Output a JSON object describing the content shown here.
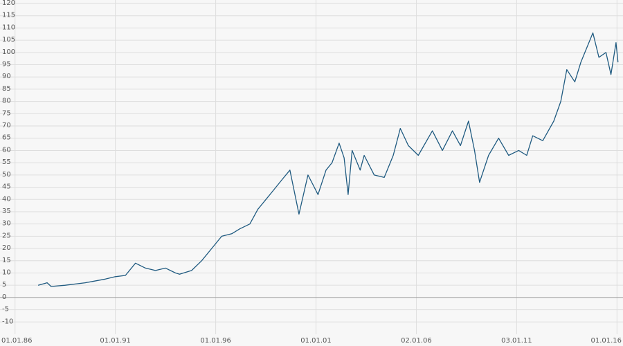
{
  "chart_data": {
    "type": "line",
    "x": [
      1987.15,
      1987.6,
      1987.8,
      1988.5,
      1989.5,
      1990.5,
      1991.0,
      1991.5,
      1992.0,
      1992.5,
      1993.0,
      1993.5,
      1994.0,
      1994.2,
      1994.8,
      1995.3,
      1995.8,
      1996.3,
      1996.8,
      1997.2,
      1997.7,
      1998.1,
      1998.5,
      1998.9,
      1999.3,
      1999.7,
      2000.15,
      2000.6,
      2000.85,
      2001.1,
      2001.5,
      2001.8,
      2002.15,
      2002.4,
      2002.6,
      2002.8,
      2003.2,
      2003.4,
      2003.9,
      2004.4,
      2004.85,
      2005.2,
      2005.6,
      2006.1,
      2006.8,
      2007.3,
      2007.8,
      2008.2,
      2008.6,
      2008.9,
      2009.15,
      2009.6,
      2010.1,
      2010.6,
      2011.1,
      2011.5,
      2011.8,
      2012.3,
      2012.85,
      2013.2,
      2013.5,
      2013.9,
      2014.2,
      2014.8,
      2015.1,
      2015.45,
      2015.7,
      2015.95,
      2016.05
    ],
    "values": [
      5,
      6,
      4.5,
      5,
      6,
      7.5,
      8.5,
      9,
      14,
      12,
      11,
      12,
      10,
      9.5,
      11,
      15,
      20,
      25,
      26,
      28,
      30,
      36,
      40,
      44,
      48,
      52,
      34,
      50,
      46,
      42,
      52,
      55,
      63,
      57,
      42,
      60,
      52,
      58,
      50,
      49,
      58,
      69,
      62,
      58,
      68,
      60,
      68,
      62,
      72,
      60,
      47,
      58,
      65,
      58,
      60,
      58,
      66,
      64,
      72,
      80,
      93,
      88,
      96,
      108,
      98,
      100,
      91,
      104,
      96
    ],
    "color": "#1f5a80",
    "xlim": [
      1985.25,
      2016.3
    ],
    "xticks": [
      {
        "value": 1986,
        "label": "01.01.86"
      },
      {
        "value": 1991,
        "label": "01.01.91"
      },
      {
        "value": 1996,
        "label": "01.01.96"
      },
      {
        "value": 2001,
        "label": "01.01.01"
      },
      {
        "value": 2006,
        "label": "02.01.06"
      },
      {
        "value": 2011,
        "label": "03.01.11"
      },
      {
        "value": 2016,
        "label": "01.01.16"
      }
    ],
    "ylim": [
      -15,
      120
    ],
    "yticks": [
      -10,
      -5,
      0,
      5,
      10,
      15,
      20,
      25,
      30,
      35,
      40,
      45,
      50,
      55,
      60,
      65,
      70,
      75,
      80,
      85,
      90,
      95,
      100,
      105,
      110,
      115,
      120
    ],
    "grid": true
  }
}
